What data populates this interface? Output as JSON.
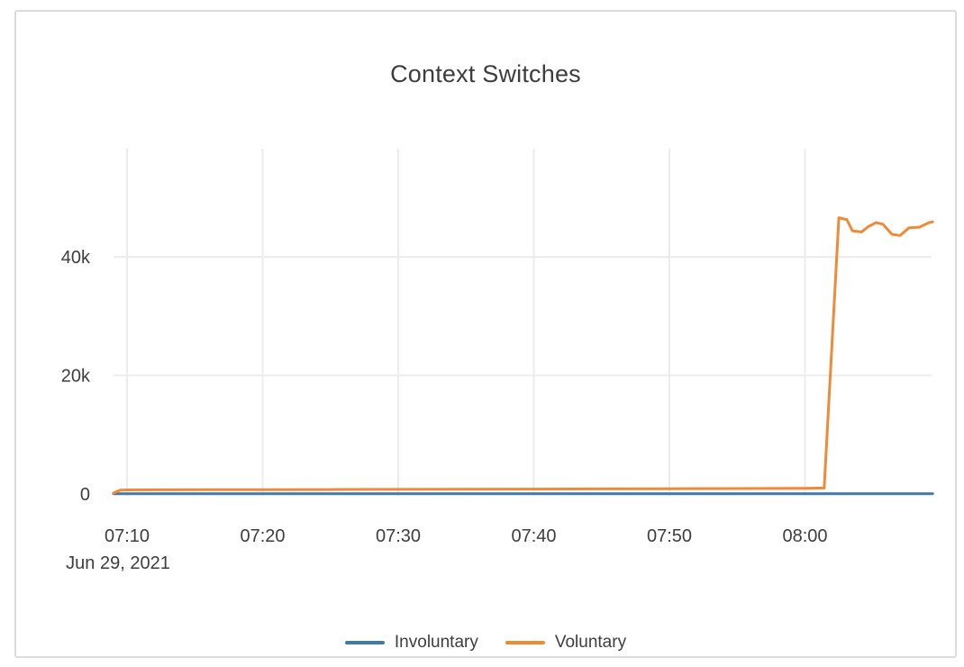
{
  "title": "Context Switches",
  "colors": {
    "involuntary": "#4379a7",
    "voluntary": "#ef8b38",
    "grid": "#ececec",
    "text": "#3d3d3d",
    "card_border": "#dcdcdc",
    "background": "#ffffff"
  },
  "legend": {
    "items": [
      {
        "label": "Involuntary",
        "color": "#4379a7"
      },
      {
        "label": "Voluntary",
        "color": "#ef8b38"
      }
    ]
  },
  "chart_data": {
    "type": "line",
    "title": "Context Switches",
    "xlabel": "",
    "ylabel": "",
    "x_date_label": "Jun 29, 2021",
    "x_ticks": [
      {
        "label": "07:10",
        "time": "07:10:00"
      },
      {
        "label": "07:20",
        "time": "07:20:00"
      },
      {
        "label": "07:30",
        "time": "07:30:00"
      },
      {
        "label": "07:40",
        "time": "07:40:00"
      },
      {
        "label": "07:50",
        "time": "07:50:00"
      },
      {
        "label": "08:00",
        "time": "08:00:00"
      }
    ],
    "y_ticks": [
      {
        "label": "0",
        "value": 0
      },
      {
        "label": "20k",
        "value": 20000
      },
      {
        "label": "40k",
        "value": 40000
      }
    ],
    "x_range": [
      "07:09:00",
      "08:09:25"
    ],
    "y_range": [
      0,
      58000
    ],
    "grid": true,
    "legend_position": "bottom",
    "series": [
      {
        "name": "Involuntary",
        "color": "#4379a7",
        "points": [
          [
            "07:09:00",
            30
          ],
          [
            "07:20:00",
            30
          ],
          [
            "07:30:00",
            35
          ],
          [
            "07:40:00",
            35
          ],
          [
            "07:50:00",
            35
          ],
          [
            "08:00:00",
            40
          ],
          [
            "08:09:25",
            40
          ]
        ]
      },
      {
        "name": "Voluntary",
        "color": "#ef8b38",
        "points": [
          [
            "07:09:00",
            150
          ],
          [
            "07:09:30",
            650
          ],
          [
            "07:10:00",
            680
          ],
          [
            "07:12:00",
            700
          ],
          [
            "07:16:00",
            715
          ],
          [
            "07:20:00",
            730
          ],
          [
            "07:25:00",
            750
          ],
          [
            "07:30:00",
            770
          ],
          [
            "07:35:00",
            795
          ],
          [
            "07:40:00",
            820
          ],
          [
            "07:45:00",
            850
          ],
          [
            "07:50:00",
            880
          ],
          [
            "07:55:00",
            920
          ],
          [
            "08:00:00",
            960
          ],
          [
            "08:01:25",
            1000
          ],
          [
            "08:02:30",
            46600
          ],
          [
            "08:03:05",
            46300
          ],
          [
            "08:03:30",
            44400
          ],
          [
            "08:04:10",
            44200
          ],
          [
            "08:04:40",
            45100
          ],
          [
            "08:05:15",
            45800
          ],
          [
            "08:05:45",
            45500
          ],
          [
            "08:06:25",
            43800
          ],
          [
            "08:07:00",
            43600
          ],
          [
            "08:07:40",
            44900
          ],
          [
            "08:08:25",
            45000
          ],
          [
            "08:09:10",
            45800
          ],
          [
            "08:09:25",
            45900
          ]
        ]
      }
    ]
  }
}
